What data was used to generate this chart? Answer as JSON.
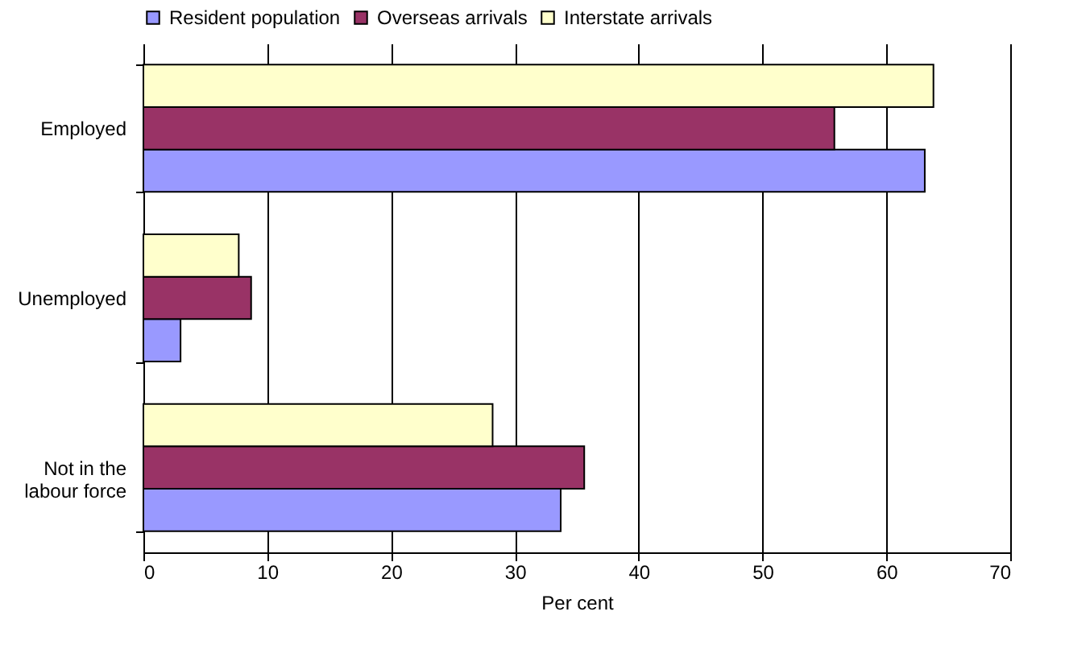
{
  "chart_data": {
    "type": "bar",
    "orientation": "horizontal",
    "xlabel": "Per cent",
    "categories": [
      "Employed",
      "Unemployed",
      "Not in the labour force"
    ],
    "series": [
      {
        "name": "Resident population",
        "color": "#9999ff",
        "values": [
          63.1,
          3.0,
          33.7
        ]
      },
      {
        "name": "Overseas arrivals",
        "color": "#993366",
        "values": [
          55.8,
          8.7,
          35.6
        ]
      },
      {
        "name": "Interstate arrivals",
        "color": "#ffffcc",
        "values": [
          63.8,
          7.7,
          28.2
        ]
      }
    ],
    "xlim": [
      0,
      70
    ],
    "xticks": [
      0,
      10,
      20,
      30,
      40,
      50,
      60,
      70
    ],
    "grid": "x",
    "legend": "top"
  }
}
